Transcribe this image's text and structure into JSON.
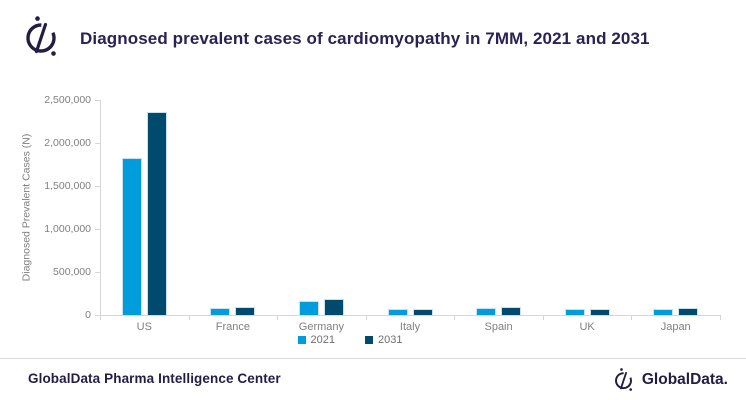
{
  "header": {
    "title": "Diagnosed prevalent cases of cardiomyopathy in 7MM, 2021 and 2031"
  },
  "chart_data": {
    "type": "bar",
    "title": "Diagnosed prevalent cases of cardiomyopathy in 7MM, 2021 and 2031",
    "categories": [
      "US",
      "France",
      "Germany",
      "Italy",
      "Spain",
      "UK",
      "Japan"
    ],
    "series": [
      {
        "name": "2021",
        "color": "#009cdb",
        "values": [
          1830000,
          80000,
          165000,
          65000,
          85000,
          65000,
          70000
        ]
      },
      {
        "name": "2031",
        "color": "#004a6e",
        "values": [
          2360000,
          95000,
          185000,
          75000,
          95000,
          75000,
          85000
        ]
      }
    ],
    "xlabel": "",
    "ylabel": "Diagnosed Prevalent  Cases (N)",
    "ylim": [
      0,
      2500000
    ],
    "ytick_values": [
      0,
      500000,
      1000000,
      1500000,
      2000000,
      2500000
    ],
    "ytick_labels": [
      "0",
      "500,000",
      "1,000,000",
      "1,500,000",
      "2,000,000",
      "2,500,000"
    ],
    "grid": false,
    "legend_position": "bottom-center"
  },
  "footer": {
    "left_text": "GlobalData Pharma Intelligence Center",
    "brand_text": "GlobalData."
  },
  "colors": {
    "series_2021": "#009cdb",
    "series_2031": "#004a6e",
    "title_text": "#2b2155",
    "axis_text": "#7f7f7f",
    "axis_line": "#d6d6d6",
    "footer_text": "#241c45"
  }
}
